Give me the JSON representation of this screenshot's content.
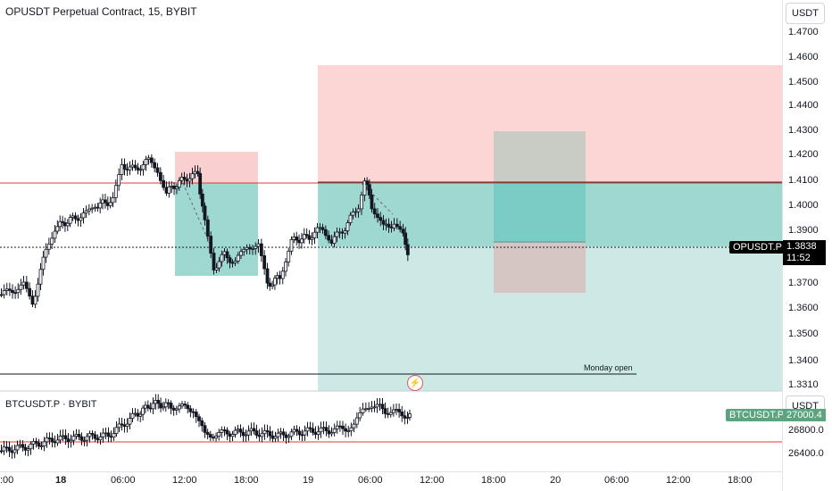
{
  "header": {
    "title": "OPUSDT Perpetual Contract, 15, BYBIT",
    "currency_top": "USDT"
  },
  "price_axis": {
    "ticks": [
      "1.4700",
      "1.4600",
      "1.4500",
      "1.4400",
      "1.4300",
      "1.4200",
      "1.4100",
      "1.4000",
      "1.3900",
      "1.3700",
      "1.3600",
      "1.3500",
      "1.3400",
      "1.3310"
    ]
  },
  "current": {
    "symbol": "OPUSDT.P",
    "price": "1.3838",
    "countdown": "11:52"
  },
  "annotation": {
    "monday_open": "Monday open"
  },
  "lower_pane": {
    "title": "BTCUSDT.P · BYBIT",
    "currency": "USDT",
    "symbol": "BTCUSDT.P",
    "price": "27000.4",
    "ticks": [
      "26800.0",
      "26400.0"
    ]
  },
  "time_axis": {
    "ticks": [
      ":00",
      "18",
      "06:00",
      "12:00",
      "18:00",
      "19",
      "06:00",
      "12:00",
      "18:00",
      "20",
      "06:00",
      "12:00",
      "18:00"
    ]
  },
  "colors": {
    "up": "#131722",
    "down": "#131722",
    "stop_zone": "#f9d0cf",
    "target_zone": "#cce9e6",
    "target_zone_strong": "#9fd8d1",
    "red_line": "#e53935",
    "btc_label": "#5ca47f"
  }
}
